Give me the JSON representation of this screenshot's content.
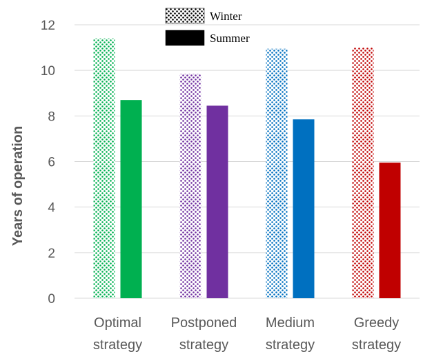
{
  "chart_data": {
    "type": "bar",
    "ylabel": "Years of operation",
    "ylim": [
      0,
      12
    ],
    "yticks": [
      0,
      2,
      4,
      6,
      8,
      10,
      12
    ],
    "grid": true,
    "legend_position": "top-center",
    "categories": [
      [
        "Optimal",
        "strategy"
      ],
      [
        "Postponed",
        "strategy"
      ],
      [
        "Medium",
        "strategy"
      ],
      [
        "Greedy",
        "strategy"
      ]
    ],
    "series": [
      {
        "name": "Winter",
        "pattern": "dotted",
        "values": [
          11.4,
          9.85,
          10.95,
          11.0
        ]
      },
      {
        "name": "Summer",
        "pattern": "solid",
        "values": [
          8.7,
          8.45,
          7.85,
          5.95
        ]
      }
    ],
    "colors": [
      "#00b050",
      "#7030a0",
      "#0070c0",
      "#c00000"
    ]
  }
}
